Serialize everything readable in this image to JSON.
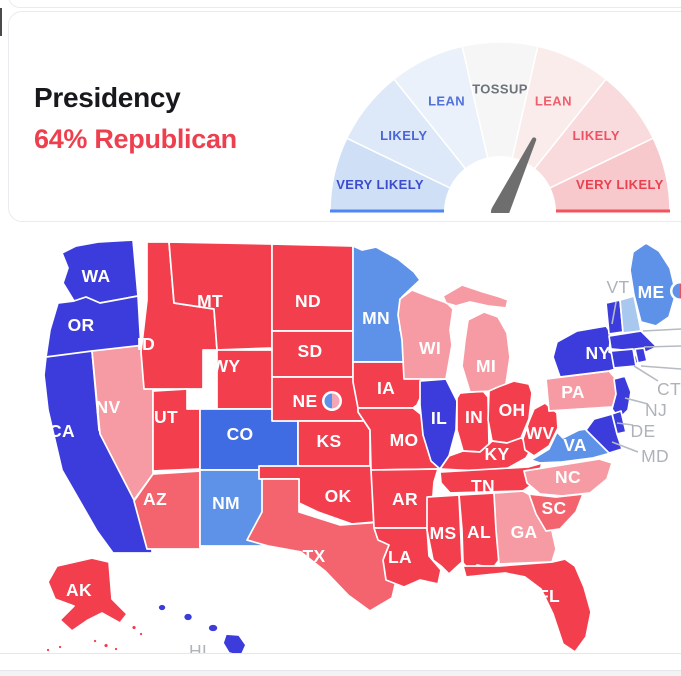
{
  "header": {
    "title": "Presidency",
    "subtitle": "64% Republican",
    "subtitle_color": "#ee3f4f"
  },
  "gauge": {
    "segments": [
      {
        "label": "VERY LIKELY",
        "side": "democrat",
        "fill": "#cfe0f6",
        "label_color": "#3d4ccd"
      },
      {
        "label": "LIKELY",
        "side": "democrat",
        "fill": "#dde9f8",
        "label_color": "#4a66d6"
      },
      {
        "label": "LEAN",
        "side": "democrat",
        "fill": "#eaf1fa",
        "label_color": "#5272d8"
      },
      {
        "label": "TOSSUP",
        "side": "tossup",
        "fill": "#f6f6f7",
        "label_color": "#6d727b"
      },
      {
        "label": "LEAN",
        "side": "republican",
        "fill": "#fbecec",
        "label_color": "#ef5f6c"
      },
      {
        "label": "LIKELY",
        "side": "republican",
        "fill": "#f9dbdd",
        "label_color": "#ee5164"
      },
      {
        "label": "VERY LIKELY",
        "side": "republican",
        "fill": "#f7c9cd",
        "label_color": "#e9414f"
      }
    ],
    "baseline_left_color": "#4f86f7",
    "baseline_right_color": "#f2545e",
    "needle": {
      "value_pct": 64,
      "color": "#6e6e6e"
    }
  },
  "map": {
    "colors": {
      "safe_d": "#3b3cdb",
      "likely_d": "#3f6ce2",
      "lean_d": "#5d92e8",
      "tilt_d": "#a9c8ef",
      "lean_r": "#f69ba4",
      "likely_r": "#f4646f",
      "safe_r": "#f23e4d"
    },
    "label_colors": {
      "on_map": "#ffffff",
      "outside": "#aeb3ba"
    },
    "states": [
      {
        "abbr": "WA",
        "rating": "safe_d",
        "label": "map"
      },
      {
        "abbr": "OR",
        "rating": "safe_d",
        "label": "map"
      },
      {
        "abbr": "CA",
        "rating": "safe_d",
        "label": "map"
      },
      {
        "abbr": "NV",
        "rating": "lean_r",
        "label": "map"
      },
      {
        "abbr": "ID",
        "rating": "safe_r",
        "label": "map"
      },
      {
        "abbr": "MT",
        "rating": "safe_r",
        "label": "map"
      },
      {
        "abbr": "WY",
        "rating": "safe_r",
        "label": "map"
      },
      {
        "abbr": "UT",
        "rating": "safe_r",
        "label": "map"
      },
      {
        "abbr": "CO",
        "rating": "likely_d",
        "label": "map"
      },
      {
        "abbr": "AZ",
        "rating": "likely_r",
        "label": "map"
      },
      {
        "abbr": "NM",
        "rating": "lean_d",
        "label": "map"
      },
      {
        "abbr": "ND",
        "rating": "safe_r",
        "label": "map"
      },
      {
        "abbr": "SD",
        "rating": "safe_r",
        "label": "map"
      },
      {
        "abbr": "NE",
        "rating": "safe_r",
        "label": "map"
      },
      {
        "abbr": "KS",
        "rating": "safe_r",
        "label": "map"
      },
      {
        "abbr": "OK",
        "rating": "safe_r",
        "label": "map"
      },
      {
        "abbr": "TX",
        "rating": "likely_r",
        "label": "map"
      },
      {
        "abbr": "MN",
        "rating": "lean_d",
        "label": "map"
      },
      {
        "abbr": "IA",
        "rating": "safe_r",
        "label": "map"
      },
      {
        "abbr": "MO",
        "rating": "safe_r",
        "label": "map"
      },
      {
        "abbr": "AR",
        "rating": "safe_r",
        "label": "map"
      },
      {
        "abbr": "LA",
        "rating": "safe_r",
        "label": "map"
      },
      {
        "abbr": "WI",
        "rating": "lean_r",
        "label": "map"
      },
      {
        "abbr": "IL",
        "rating": "safe_d",
        "label": "map"
      },
      {
        "abbr": "IN",
        "rating": "safe_r",
        "label": "map"
      },
      {
        "abbr": "MI",
        "rating": "lean_r",
        "label": "map"
      },
      {
        "abbr": "OH",
        "rating": "safe_r",
        "label": "map"
      },
      {
        "abbr": "KY",
        "rating": "safe_r",
        "label": "map"
      },
      {
        "abbr": "TN",
        "rating": "safe_r",
        "label": "map"
      },
      {
        "abbr": "MS",
        "rating": "safe_r",
        "label": "map"
      },
      {
        "abbr": "AL",
        "rating": "safe_r",
        "label": "map"
      },
      {
        "abbr": "GA",
        "rating": "lean_r",
        "label": "map"
      },
      {
        "abbr": "FL",
        "rating": "safe_r",
        "label": "map"
      },
      {
        "abbr": "SC",
        "rating": "likely_r",
        "label": "map"
      },
      {
        "abbr": "NC",
        "rating": "lean_r",
        "label": "map"
      },
      {
        "abbr": "VA",
        "rating": "lean_d",
        "label": "map"
      },
      {
        "abbr": "WV",
        "rating": "safe_r",
        "label": "map"
      },
      {
        "abbr": "PA",
        "rating": "lean_r",
        "label": "map"
      },
      {
        "abbr": "NY",
        "rating": "safe_d",
        "label": "map"
      },
      {
        "abbr": "VT",
        "rating": "safe_d",
        "label": "outside"
      },
      {
        "abbr": "NH",
        "rating": "tilt_d",
        "label": "none"
      },
      {
        "abbr": "MA",
        "rating": "safe_d",
        "label": "none"
      },
      {
        "abbr": "CT",
        "rating": "safe_d",
        "label": "outside"
      },
      {
        "abbr": "RI",
        "rating": "safe_d",
        "label": "none"
      },
      {
        "abbr": "NJ",
        "rating": "safe_d",
        "label": "outside"
      },
      {
        "abbr": "DE",
        "rating": "safe_d",
        "label": "outside"
      },
      {
        "abbr": "MD",
        "rating": "safe_d",
        "label": "outside"
      },
      {
        "abbr": "ME",
        "rating": "lean_d",
        "label": "map"
      },
      {
        "abbr": "AK",
        "rating": "safe_r",
        "label": "map"
      },
      {
        "abbr": "HI",
        "rating": "safe_d",
        "label": "outside"
      }
    ],
    "split_markers": [
      {
        "state": "NE",
        "left_color": "#5d92e8",
        "right_color": "#f3a6b6"
      },
      {
        "state": "ME",
        "left_color": "#5d92e8",
        "right_color": "#ef4f5c"
      }
    ]
  },
  "chart_data": [
    {
      "type": "gauge",
      "title": "Presidency",
      "value_label": "64% Republican",
      "republican_win_probability_pct": 64,
      "scale_labels": [
        "VERY LIKELY",
        "LIKELY",
        "LEAN",
        "TOSSUP",
        "LEAN",
        "LIKELY",
        "VERY LIKELY"
      ],
      "needle_points_to": "LEAN Republican"
    },
    {
      "type": "choropleth",
      "subject": "US presidential forecast rating by state",
      "categories": [
        "safe_d",
        "likely_d",
        "lean_d",
        "tilt_d",
        "lean_r",
        "likely_r",
        "safe_r"
      ],
      "ratings": {
        "safe_d": [
          "WA",
          "OR",
          "CA",
          "IL",
          "NY",
          "VT",
          "MA",
          "CT",
          "RI",
          "NJ",
          "DE",
          "MD",
          "HI"
        ],
        "likely_d": [
          "CO"
        ],
        "lean_d": [
          "MN",
          "NM",
          "VA",
          "ME"
        ],
        "tilt_d": [
          "NH"
        ],
        "lean_r": [
          "NV",
          "WI",
          "MI",
          "PA",
          "GA",
          "NC"
        ],
        "likely_r": [
          "AZ",
          "TX",
          "SC"
        ],
        "safe_r": [
          "ID",
          "MT",
          "WY",
          "UT",
          "ND",
          "SD",
          "NE",
          "KS",
          "OK",
          "MO",
          "IA",
          "IN",
          "OH",
          "KY",
          "WV",
          "TN",
          "AR",
          "AL",
          "MS",
          "LA",
          "FL",
          "AK"
        ]
      },
      "split_electoral_vote_states": [
        "NE",
        "ME"
      ]
    }
  ]
}
